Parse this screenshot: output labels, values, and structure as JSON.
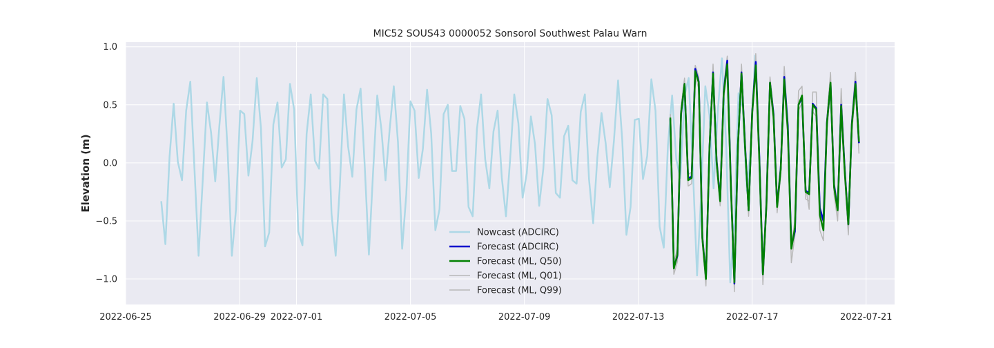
{
  "chart_data": {
    "type": "line",
    "title": "MIC52 SOUS43 0000052 Sonsorol Southwest Palau Warn",
    "xlabel": "",
    "ylabel": "Elevation (m)",
    "xlim": [
      "2022-06-25T00:00",
      "2022-07-22T00:00"
    ],
    "ylim": [
      -1.22,
      1.04
    ],
    "x_ticks": [
      "2022-06-25",
      "2022-06-29",
      "2022-07-01",
      "2022-07-05",
      "2022-07-09",
      "2022-07-13",
      "2022-07-17",
      "2022-07-21"
    ],
    "y_ticks": [
      -1.0,
      -0.5,
      0.0,
      0.5,
      1.0
    ],
    "y_tick_labels": [
      "−1.0",
      "−0.5",
      "0.0",
      "0.5",
      "1.0"
    ],
    "grid": true,
    "legend_position": "lower-center",
    "series": [
      {
        "name": "Nowcast (ADCIRC)",
        "color": "#add8e6",
        "line_width": 2.5,
        "t0": "2022-06-26T06:00",
        "step_hours": 3.5,
        "values": [
          -0.33,
          -0.7,
          0.05,
          0.51,
          0.01,
          -0.15,
          0.45,
          0.7,
          -0.05,
          -0.8,
          -0.15,
          0.52,
          0.26,
          -0.16,
          0.32,
          0.74,
          0.1,
          -0.8,
          -0.4,
          0.45,
          0.42,
          -0.11,
          0.19,
          0.73,
          0.3,
          -0.72,
          -0.6,
          0.33,
          0.52,
          -0.04,
          0.03,
          0.68,
          0.46,
          -0.59,
          -0.71,
          0.25,
          0.59,
          0.02,
          -0.05,
          0.59,
          0.55,
          -0.44,
          -0.8,
          -0.2,
          0.59,
          0.14,
          -0.12,
          0.46,
          0.64,
          -0.03,
          -0.79,
          -0.09,
          0.58,
          0.29,
          -0.15,
          0.29,
          0.66,
          0.18,
          -0.74,
          -0.27,
          0.53,
          0.45,
          -0.13,
          0.12,
          0.63,
          0.25,
          -0.58,
          -0.4,
          0.42,
          0.5,
          -0.07,
          -0.07,
          0.49,
          0.38,
          -0.38,
          -0.46,
          0.29,
          0.59,
          0.03,
          -0.22,
          0.27,
          0.45,
          -0.13,
          -0.46,
          0.03,
          0.59,
          0.34,
          -0.3,
          -0.09,
          0.4,
          0.16,
          -0.37,
          -0.05,
          0.55,
          0.41,
          -0.26,
          -0.3,
          0.23,
          0.32,
          -0.15,
          -0.18,
          0.44,
          0.59,
          -0.14,
          -0.52,
          0.05,
          0.43,
          0.17,
          -0.21,
          0.19,
          0.71,
          0.19,
          -0.62,
          -0.38,
          0.37,
          0.38,
          -0.14,
          0.06,
          0.72,
          0.45,
          -0.55,
          -0.73,
          0.15,
          0.58,
          0.03,
          -0.13,
          0.58,
          0.73,
          -0.04,
          -0.97,
          -0.27,
          0.66,
          0.41,
          -0.22,
          0.44,
          0.9,
          0.17,
          -1.03,
          -0.49,
          0.6,
          0.48,
          -0.24,
          0.16,
          0.93
        ]
      },
      {
        "name": "Forecast (ADCIRC)",
        "color": "#0000cc",
        "line_width": 2.5,
        "t0": "2022-07-14T03:00",
        "step_hours": 3.0,
        "values": [
          0.38,
          -0.9,
          -0.8,
          0.42,
          0.68,
          -0.13,
          -0.12,
          0.81,
          0.7,
          -0.64,
          -0.99,
          0.12,
          0.78,
          0.02,
          -0.32,
          0.61,
          0.88,
          -0.18,
          -1.04,
          0.15,
          0.78,
          0.15,
          -0.41,
          0.44,
          0.87,
          0.06,
          -0.96,
          -0.35,
          0.69,
          0.42,
          -0.37,
          -0.05,
          0.74,
          0.32,
          -0.72,
          -0.59,
          0.5,
          0.56,
          -0.24,
          -0.26,
          0.51,
          0.47,
          -0.39,
          -0.5,
          0.35,
          0.68,
          -0.19,
          -0.4,
          0.5,
          -0.06,
          -0.53,
          0.34,
          0.7,
          0.17
        ]
      },
      {
        "name": "Forecast (ML, Q50)",
        "color": "#008000",
        "line_width": 2.5,
        "t0": "2022-07-14T03:00",
        "step_hours": 3.0,
        "values": [
          0.39,
          -0.91,
          -0.79,
          0.43,
          0.68,
          -0.15,
          -0.13,
          0.79,
          0.69,
          -0.65,
          -1.0,
          0.13,
          0.77,
          0.01,
          -0.33,
          0.6,
          0.85,
          -0.2,
          -1.03,
          0.16,
          0.77,
          0.13,
          -0.41,
          0.43,
          0.84,
          0.03,
          -0.96,
          -0.37,
          0.69,
          0.4,
          -0.38,
          -0.06,
          0.72,
          0.28,
          -0.74,
          -0.56,
          0.5,
          0.58,
          -0.25,
          -0.27,
          0.5,
          0.46,
          -0.45,
          -0.58,
          0.34,
          0.69,
          -0.21,
          -0.41,
          0.49,
          -0.08,
          -0.53,
          0.33,
          0.68,
          0.18
        ]
      },
      {
        "name": "Forecast (ML, Q01)",
        "color": "#b8b8b8",
        "line_width": 1.5,
        "t0": "2022-07-14T03:00",
        "step_hours": 3.0,
        "values": [
          0.35,
          -0.96,
          -0.85,
          0.38,
          0.64,
          -0.2,
          -0.18,
          0.74,
          0.64,
          -0.7,
          -1.06,
          0.08,
          0.72,
          -0.05,
          -0.37,
          0.55,
          0.8,
          -0.25,
          -1.11,
          0.1,
          0.72,
          0.08,
          -0.46,
          0.38,
          0.79,
          -0.02,
          -1.05,
          -0.42,
          0.63,
          0.35,
          -0.43,
          -0.11,
          0.67,
          0.22,
          -0.86,
          -0.62,
          0.45,
          0.52,
          -0.31,
          -0.33,
          0.44,
          0.4,
          -0.58,
          -0.67,
          0.28,
          0.63,
          -0.27,
          -0.5,
          0.43,
          -0.14,
          -0.62,
          0.27,
          0.62,
          0.08
        ]
      },
      {
        "name": "Forecast (ML, Q99)",
        "color": "#b8b8b8",
        "line_width": 1.5,
        "t0": "2022-07-14T03:00",
        "step_hours": 3.0,
        "values": [
          0.42,
          -0.86,
          -0.74,
          0.48,
          0.73,
          -0.1,
          -0.08,
          0.84,
          0.74,
          -0.6,
          -0.95,
          0.18,
          0.85,
          0.07,
          -0.28,
          0.66,
          0.92,
          -0.15,
          -0.98,
          0.21,
          0.85,
          0.18,
          -0.36,
          0.48,
          0.94,
          0.08,
          -0.9,
          -0.32,
          0.74,
          0.45,
          -0.33,
          -0.01,
          0.83,
          0.34,
          -0.69,
          -0.5,
          0.62,
          0.66,
          -0.2,
          -0.4,
          0.61,
          0.61,
          -0.4,
          -0.52,
          0.39,
          0.78,
          -0.16,
          -0.36,
          0.64,
          -0.03,
          -0.48,
          0.38,
          0.78,
          0.22
        ]
      }
    ]
  }
}
